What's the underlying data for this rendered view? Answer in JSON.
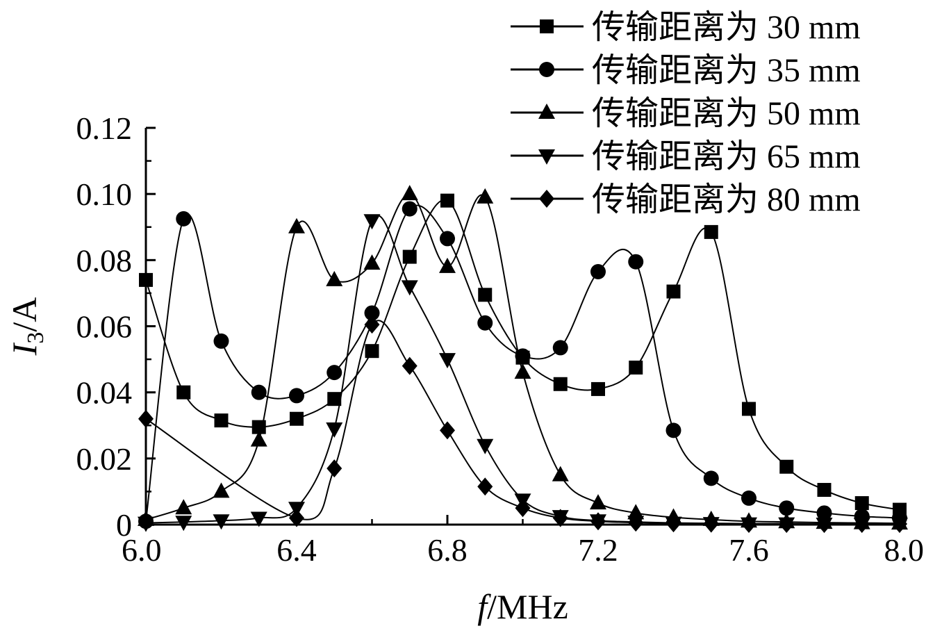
{
  "chart_data": {
    "type": "line",
    "title": "",
    "xlabel": {
      "var": "f",
      "sep": "/",
      "unit": "MHz"
    },
    "ylabel": {
      "var": "I",
      "sub": "3",
      "sep": "/",
      "unit": "A"
    },
    "xlim": [
      6.0,
      8.0
    ],
    "ylim": [
      0,
      0.12
    ],
    "xticks": [
      6.0,
      6.4,
      6.8,
      7.2,
      7.6,
      8.0
    ],
    "xtick_labels": [
      "6.0",
      "6.4",
      "6.8",
      "7.2",
      "7.6",
      "8.0"
    ],
    "yticks": [
      0,
      0.02,
      0.04,
      0.06,
      0.08,
      0.1,
      0.12
    ],
    "ytick_labels": [
      "0",
      "0.02",
      "0.04",
      "0.06",
      "0.08",
      "0.10",
      "0.12"
    ],
    "grid": false,
    "legend_position": "top-right",
    "x": [
      6.0,
      6.1,
      6.2,
      6.3,
      6.4,
      6.5,
      6.6,
      6.7,
      6.8,
      6.9,
      7.0,
      7.1,
      7.2,
      7.3,
      7.4,
      7.5,
      7.6,
      7.7,
      7.8,
      7.9,
      8.0
    ],
    "series": [
      {
        "name": "传输距离为 30 mm",
        "marker": "square",
        "values": [
          0.074,
          0.04,
          0.0315,
          0.0295,
          0.032,
          0.038,
          0.0525,
          0.081,
          0.098,
          0.0695,
          0.0505,
          0.0425,
          0.041,
          0.0475,
          0.0705,
          0.0885,
          0.035,
          0.0175,
          0.0105,
          0.0065,
          0.0045
        ]
      },
      {
        "name": "传输距离为 35 mm",
        "marker": "circle",
        "values": [
          0.001,
          0.0925,
          0.0555,
          0.04,
          0.039,
          0.046,
          0.064,
          0.0955,
          0.0865,
          0.061,
          0.051,
          0.0535,
          0.0765,
          0.0795,
          0.0285,
          0.014,
          0.008,
          0.005,
          0.0035,
          0.0025,
          0.002
        ]
      },
      {
        "name": "传输距离为 50 mm",
        "marker": "triangle-up",
        "values": [
          0.0015,
          0.005,
          0.01,
          0.0255,
          0.09,
          0.074,
          0.079,
          0.1,
          0.078,
          0.099,
          0.046,
          0.015,
          0.0065,
          0.0035,
          0.0022,
          0.0015,
          0.001,
          0.0008,
          0.0006,
          0.0005,
          0.0004
        ]
      },
      {
        "name": "传输距离为 65 mm",
        "marker": "triangle-down",
        "values": [
          0.0005,
          0.0008,
          0.0012,
          0.002,
          0.005,
          0.029,
          0.092,
          0.072,
          0.05,
          0.024,
          0.0075,
          0.0025,
          0.0012,
          0.0008,
          0.0005,
          0.0004,
          0.0003,
          0.0003,
          0.0002,
          0.0002,
          0.0002
        ]
      },
      {
        "name": "传输距离为 80 mm",
        "marker": "diamond",
        "values": [
          0.032,
          null,
          null,
          null,
          0.002,
          0.017,
          0.0605,
          0.048,
          0.0285,
          0.0115,
          0.005,
          0.002,
          0.001,
          0.0006,
          0.0004,
          0.0003,
          0.0002,
          0.0002,
          0.0002,
          0.0002,
          0.0002
        ]
      }
    ]
  }
}
